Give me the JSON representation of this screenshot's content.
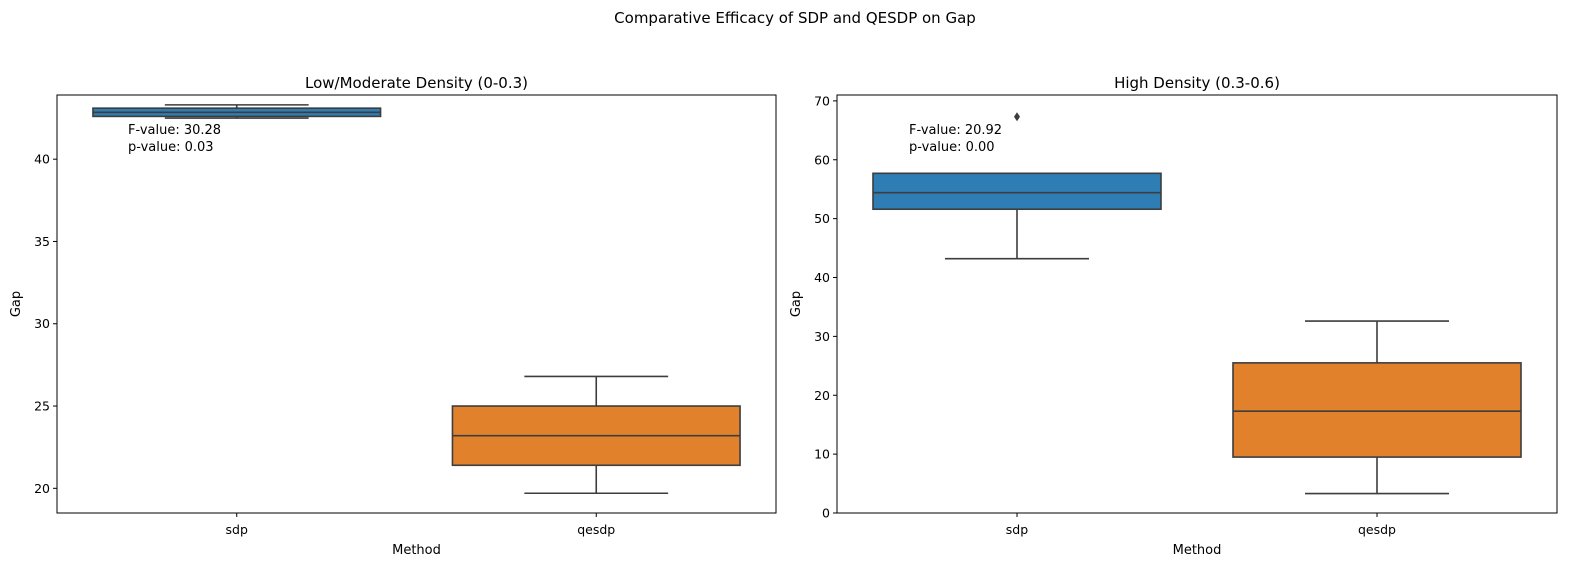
{
  "figure": {
    "suptitle": "Comparative Efficacy of SDP and QESDP on Gap"
  },
  "chart_data": [
    {
      "type": "box",
      "title": "Low/Moderate Density (0-0.3)",
      "xlabel": "Method",
      "ylabel": "Gap",
      "categories": [
        "sdp",
        "qesdp"
      ],
      "ylim": [
        18.5,
        43.9
      ],
      "yticks": [
        20,
        25,
        30,
        35,
        40
      ],
      "grid": false,
      "boxes": [
        {
          "category": "sdp",
          "color": "#1f77b4",
          "whisker_low": 42.5,
          "q1": 42.6,
          "median": 42.85,
          "q3": 43.1,
          "whisker_high": 43.3,
          "outliers": []
        },
        {
          "category": "qesdp",
          "color": "#ff7f0e",
          "whisker_low": 19.7,
          "q1": 21.4,
          "median": 23.2,
          "q3": 25.0,
          "whisker_high": 26.8,
          "outliers": []
        }
      ],
      "annotation": {
        "f_text": "F-value: 30.28",
        "p_text": "p-value: 0.03"
      }
    },
    {
      "type": "box",
      "title": "High Density (0.3-0.6)",
      "xlabel": "Method",
      "ylabel": "Gap",
      "categories": [
        "sdp",
        "qesdp"
      ],
      "ylim": [
        0,
        71
      ],
      "yticks": [
        0,
        10,
        20,
        30,
        40,
        50,
        60,
        70
      ],
      "grid": false,
      "boxes": [
        {
          "category": "sdp",
          "color": "#1f77b4",
          "whisker_low": 43.2,
          "q1": 51.6,
          "median": 54.4,
          "q3": 57.7,
          "whisker_high": 57.7,
          "outliers": [
            67.3
          ]
        },
        {
          "category": "qesdp",
          "color": "#ff7f0e",
          "whisker_low": 3.3,
          "q1": 9.5,
          "median": 17.3,
          "q3": 25.5,
          "whisker_high": 32.6,
          "outliers": []
        }
      ],
      "annotation": {
        "f_text": "F-value: 20.92",
        "p_text": "p-value: 0.00"
      }
    }
  ]
}
